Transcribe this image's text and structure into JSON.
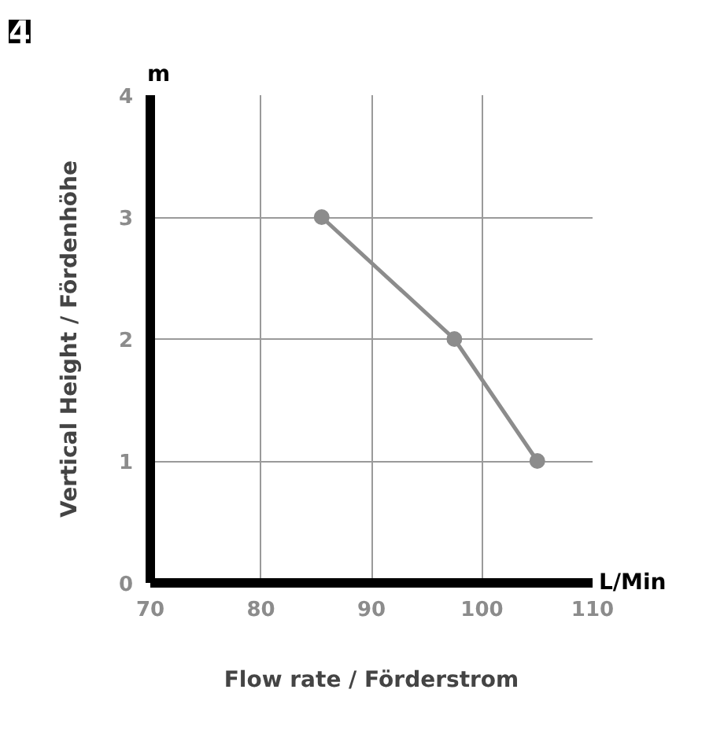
{
  "chart_data": {
    "type": "line",
    "xlabel": "Flow rate / Förderstrom",
    "ylabel": "Vertical Height / Fördenhöhe",
    "annotations": [
      "4",
      "m",
      "L/Min"
    ],
    "x": [
      85.5,
      97.5,
      105
    ],
    "series": [
      {
        "color": "#8c8c8c",
        "values": [
          3,
          2,
          1
        ]
      }
    ],
    "xlim": [
      70,
      110
    ],
    "ylim": [
      0,
      4
    ],
    "xticks": [
      70,
      80,
      90,
      100,
      110
    ],
    "yticks": [
      0,
      1,
      2,
      3,
      4
    ],
    "grid": true,
    "marker": "circle",
    "line_style": "solid"
  }
}
